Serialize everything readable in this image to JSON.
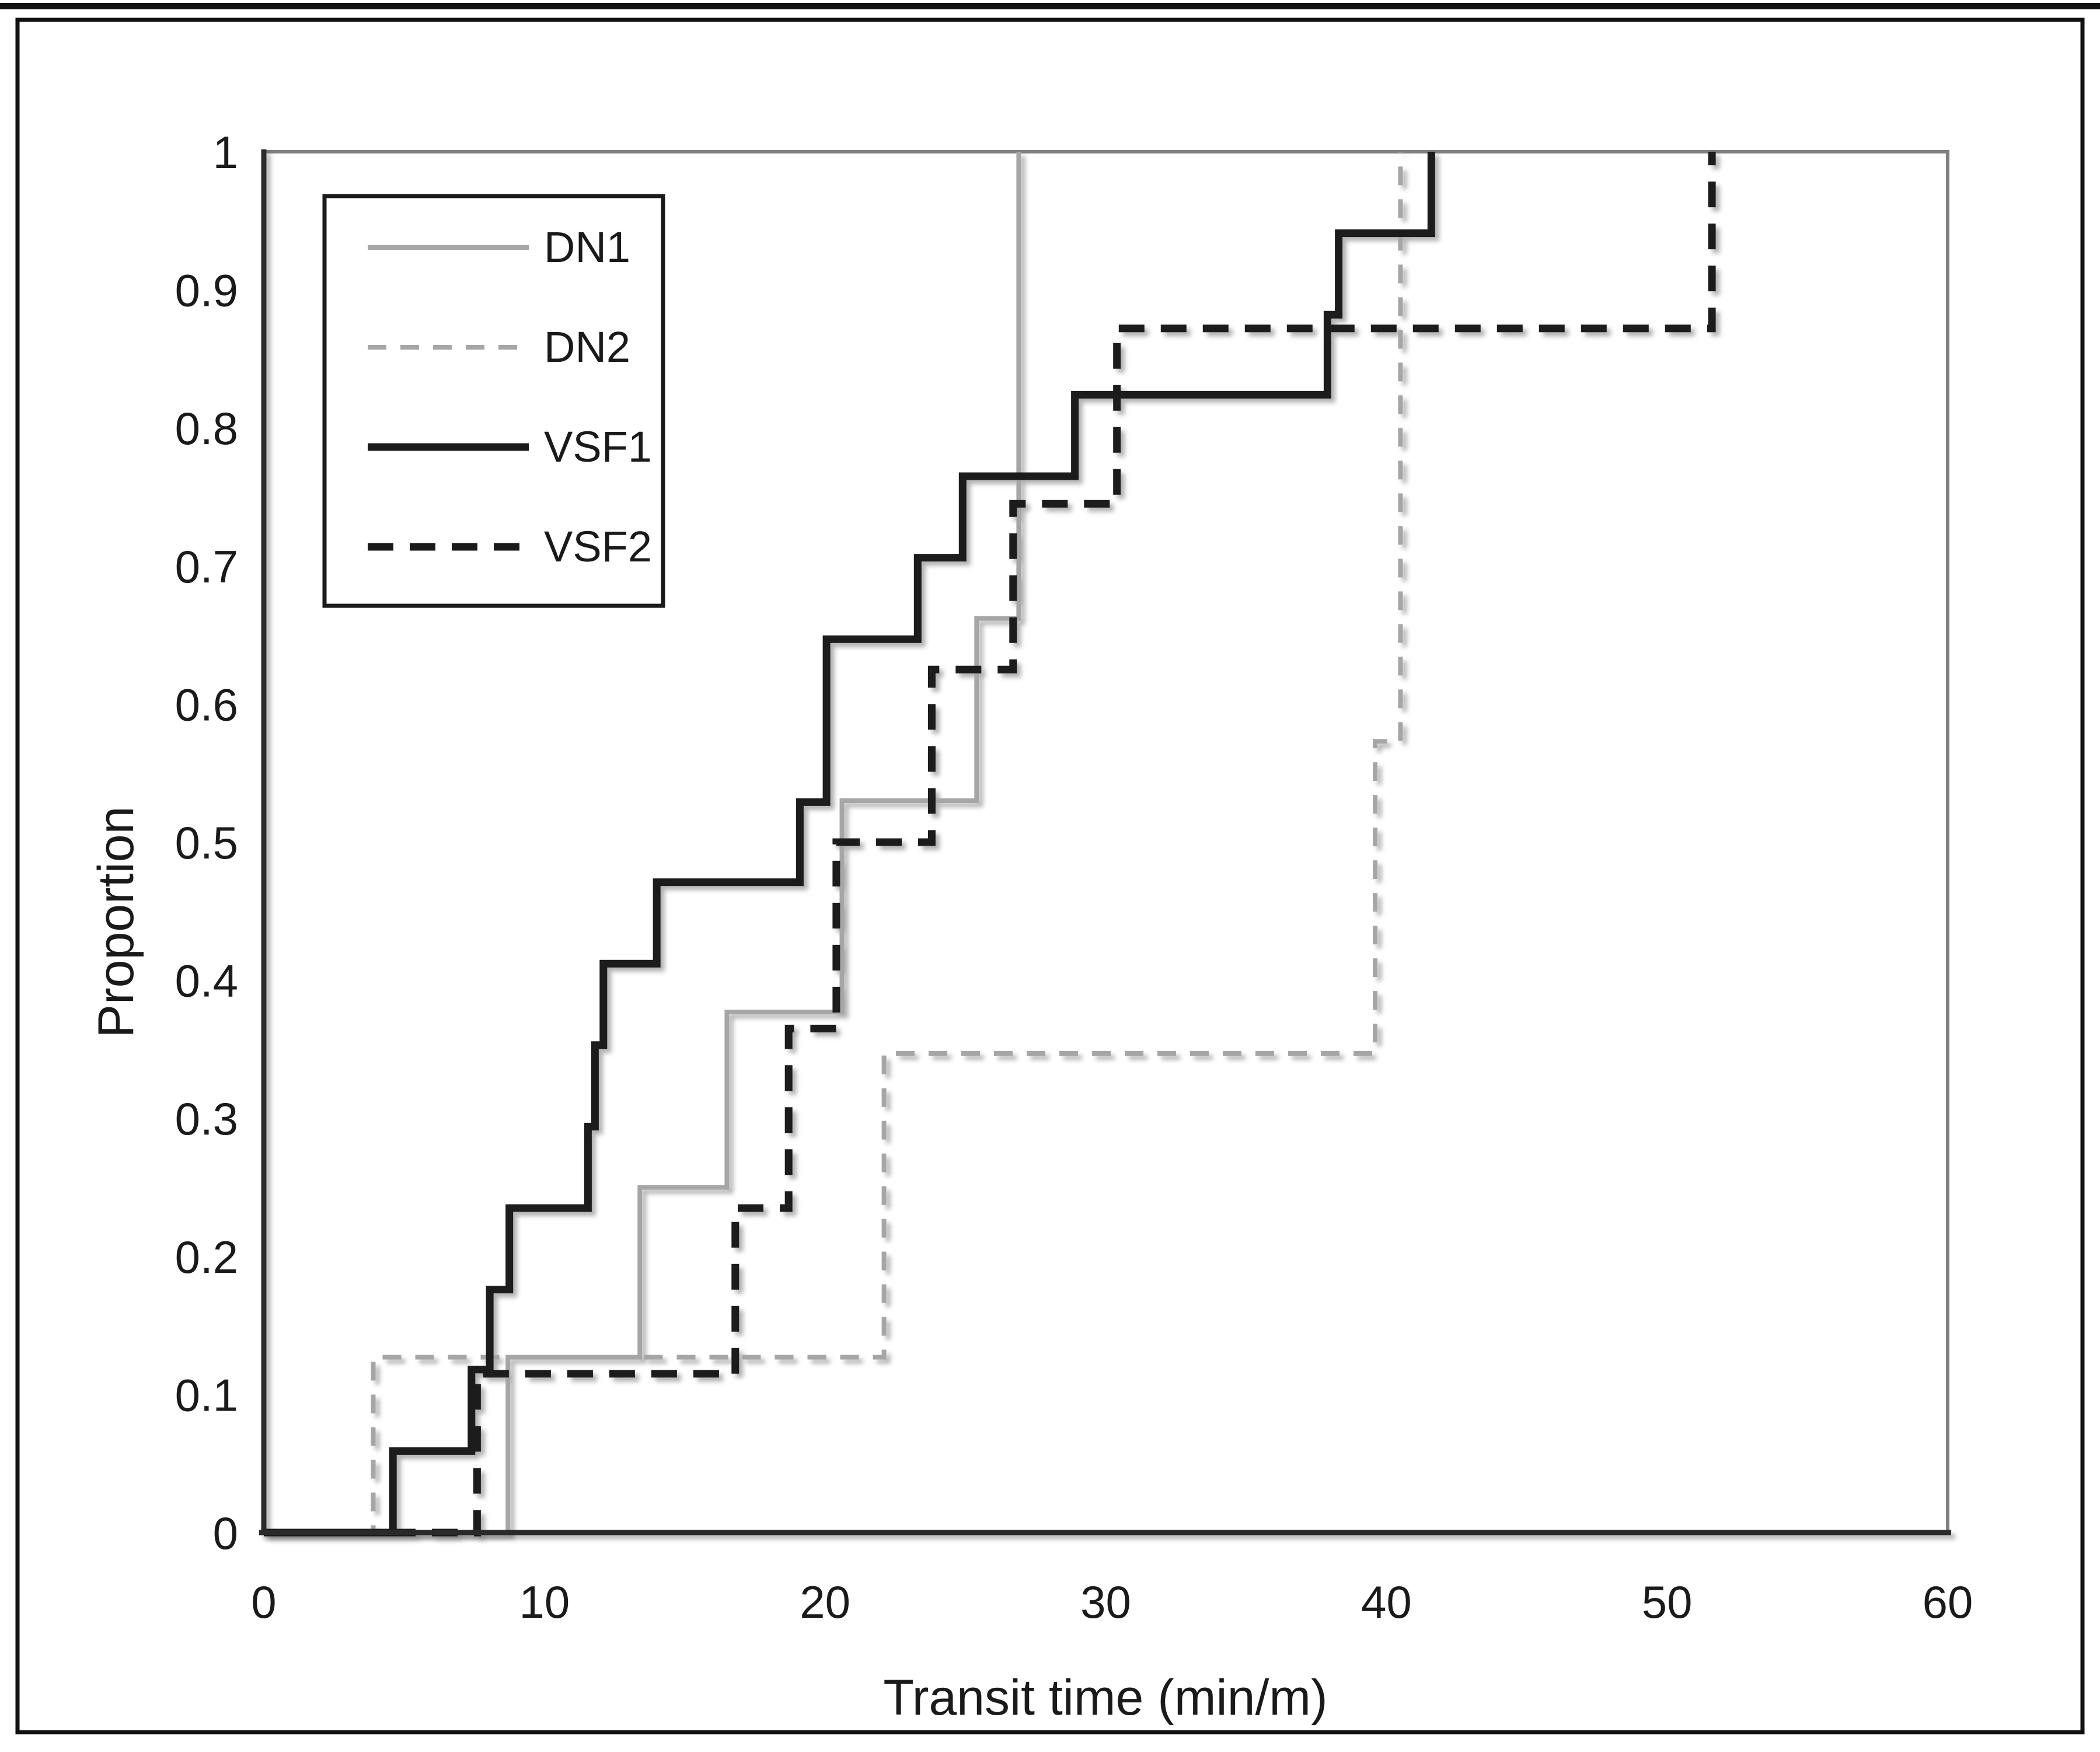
{
  "figure": {
    "background": "#ffffff",
    "outer_border_color": "#111111",
    "top_strip_color": "#111111",
    "plot_border_color": "#808080",
    "axis_color": "#2b2b2b"
  },
  "chart_data": {
    "type": "line",
    "subtype": "ecdf_step",
    "title": "",
    "xlabel": "Transit time (min/m)",
    "ylabel": "Proportion",
    "xlim": [
      0,
      60
    ],
    "ylim": [
      0,
      1
    ],
    "xticks": [
      0,
      10,
      20,
      30,
      40,
      50,
      60
    ],
    "ytick_labels": [
      "0",
      "0.1",
      "0.2",
      "0.3",
      "0.4",
      "0.5",
      "0.6",
      "0.7",
      "0.8",
      "0.9",
      "1"
    ],
    "grid": false,
    "legend_position": "upper-left",
    "series": [
      {
        "name": "DN1",
        "color": "#a6a6a6",
        "style": "solid",
        "width": 8,
        "start": [
          0,
          0
        ],
        "jumps": [
          [
            8.7,
            0.127
          ],
          [
            13.4,
            0.25
          ],
          [
            16.5,
            0.377
          ],
          [
            20.6,
            0.53
          ],
          [
            25.4,
            0.662
          ],
          [
            26.9,
            1.0
          ]
        ]
      },
      {
        "name": "DN2",
        "color": "#a6a6a6",
        "style": "dashed",
        "width": 8,
        "start": [
          0,
          0
        ],
        "jumps": [
          [
            3.9,
            0.127
          ],
          [
            22.1,
            0.347
          ],
          [
            39.6,
            0.573
          ],
          [
            40.5,
            1.0
          ]
        ]
      },
      {
        "name": "VSF1",
        "color": "#1a1a1a",
        "style": "solid",
        "width": 13,
        "start": [
          0,
          0
        ],
        "jumps": [
          [
            4.6,
            0.059
          ],
          [
            7.4,
            0.118
          ],
          [
            8.05,
            0.176
          ],
          [
            8.75,
            0.235
          ],
          [
            11.55,
            0.294
          ],
          [
            11.8,
            0.353
          ],
          [
            12.1,
            0.412
          ],
          [
            14.0,
            0.471
          ],
          [
            19.1,
            0.529
          ],
          [
            20.05,
            0.647
          ],
          [
            23.3,
            0.706
          ],
          [
            24.9,
            0.765
          ],
          [
            28.9,
            0.824
          ],
          [
            37.9,
            0.882
          ],
          [
            38.3,
            0.941
          ],
          [
            41.6,
            1.0
          ]
        ]
      },
      {
        "name": "VSF2",
        "color": "#1a1a1a",
        "style": "dashed",
        "width": 13,
        "start": [
          0,
          0
        ],
        "jumps": [
          [
            7.6,
            0.115
          ],
          [
            16.8,
            0.235
          ],
          [
            18.7,
            0.365
          ],
          [
            20.4,
            0.5
          ],
          [
            23.8,
            0.625
          ],
          [
            26.7,
            0.745
          ],
          [
            30.4,
            0.872
          ],
          [
            51.6,
            1.0
          ]
        ]
      }
    ]
  }
}
